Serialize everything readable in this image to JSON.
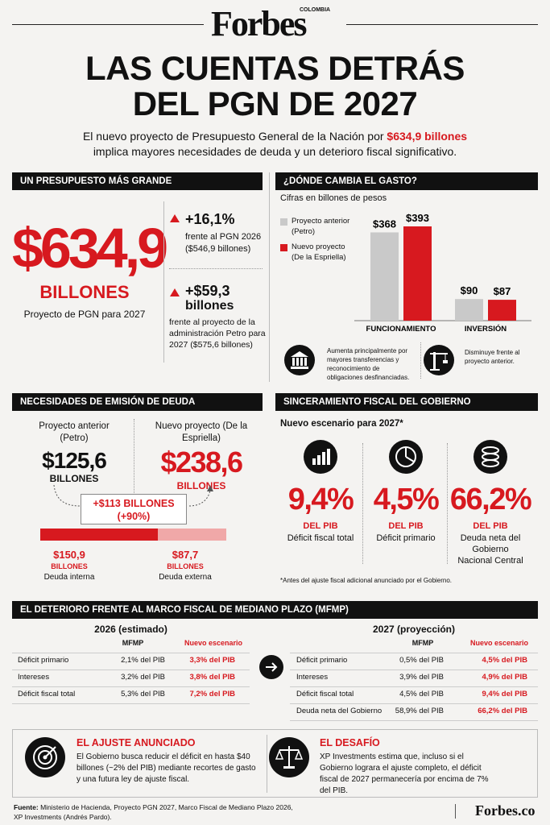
{
  "header": {
    "brand": "Forbes",
    "edition": "COLOMBIA",
    "title_line1": "LAS CUENTAS DETRÁS",
    "title_line2": "DEL PGN DE 2027",
    "intro_before": "El nuevo proyecto de Presupuesto General de la Nación por ",
    "intro_highlight": "$634,9 billones",
    "intro_after": "implica mayores necesidades de deuda y un deterioro fiscal significativo."
  },
  "budget": {
    "heading": "UN PRESUPUESTO MÁS GRANDE",
    "amount": "$634,9",
    "unit": "BILLONES",
    "caption": "Proyecto de PGN para 2027",
    "changes": [
      {
        "value": "+16,1%",
        "detail": "frente al PGN 2026 ($546,9 billones)"
      },
      {
        "value": "+$59,3",
        "unit": "billones",
        "detail": "frente al proyecto de la administración Petro para 2027 ($575,6 billones)"
      }
    ]
  },
  "spending": {
    "heading": "¿DÓNDE CAMBIA EL GASTO?",
    "subtitle": "Cifras en billones de pesos",
    "chart": {
      "type": "bar",
      "categories": [
        "FUNCIONAMIENTO",
        "INVERSIÓN"
      ],
      "series": [
        {
          "name": "Proyecto anterior (Petro)",
          "color": "#c9c9c9",
          "values": [
            368,
            90
          ],
          "value_labels": [
            "$368",
            "$90"
          ]
        },
        {
          "name": "Nuevo proyecto (De la Espriella)",
          "color": "#d7191f",
          "values": [
            393,
            87
          ],
          "value_labels": [
            "$393",
            "$87"
          ]
        }
      ]
    },
    "notes": [
      "Aumenta principalmente por mayores transferencias y reconocimiento de obligaciones desfinanciadas.",
      "Disminuye frente al proyecto anterior."
    ]
  },
  "debt": {
    "heading": "NECESIDADES DE EMISIÓN DE DEUDA",
    "previous": {
      "label": "Proyecto anterior (Petro)",
      "amount": "$125,6",
      "unit": "BILLONES"
    },
    "new": {
      "label": "Nuevo proyecto (De la Espriella)",
      "amount": "$238,6",
      "unit": "BILLONES"
    },
    "difference": "+$113 BILLONES",
    "difference_pct": "(+90%)",
    "segments": [
      {
        "value": 150.9,
        "value_label": "$150,9",
        "unit": "BILLONES",
        "name": "Deuda interna",
        "color": "#d7191f"
      },
      {
        "value": 87.7,
        "value_label": "$87,7",
        "unit": "BILLONES",
        "name": "Deuda externa",
        "color": "#f0a8a8"
      }
    ]
  },
  "fiscal": {
    "heading": "SINCERAMIENTO FISCAL DEL GOBIERNO",
    "subtitle": "Nuevo escenario para 2027*",
    "items": [
      {
        "value": "9,4%",
        "unit": "DEL PIB",
        "label": "Déficit fiscal total"
      },
      {
        "value": "4,5%",
        "unit": "DEL PIB",
        "label": "Déficit primario"
      },
      {
        "value": "66,2%",
        "unit": "DEL PIB",
        "label": "Deuda neta del Gobierno Nacional Central"
      }
    ],
    "footnote": "*Antes del ajuste fiscal adicional anunciado por el Gobierno."
  },
  "mfmp": {
    "heading": "EL DETERIORO FRENTE AL MARCO FISCAL DE MEDIANO PLAZO (MFMP)",
    "tables": [
      {
        "title": "2026 (estimado)",
        "columns": [
          "MFMP",
          "Nuevo escenario"
        ],
        "rows": [
          [
            "Déficit primario",
            "2,1% del PIB",
            "3,3% del PIB"
          ],
          [
            "Intereses",
            "3,2% del PIB",
            "3,8% del PIB"
          ],
          [
            "Déficit fiscal total",
            "5,3% del PIB",
            "7,2% del PIB"
          ]
        ]
      },
      {
        "title": "2027 (proyección)",
        "columns": [
          "MFMP",
          "Nuevo escenario"
        ],
        "rows": [
          [
            "Déficit primario",
            "0,5% del PIB",
            "4,5% del PIB"
          ],
          [
            "Intereses",
            "3,9% del PIB",
            "4,9% del PIB"
          ],
          [
            "Déficit fiscal total",
            "4,5% del PIB",
            "9,4% del PIB"
          ],
          [
            "Deuda neta del Gobierno",
            "58,9% del PIB",
            "66,2% del PIB"
          ]
        ]
      }
    ]
  },
  "boxes": [
    {
      "heading": "EL AJUSTE ANUNCIADO",
      "text": "El Gobierno busca reducir el déficit en hasta $40 billones (~2% del PIB) mediante recortes de gasto y una futura ley de ajuste fiscal."
    },
    {
      "heading": "EL DESAFÍO",
      "text": "XP Investments estima que, incluso si el Gobierno lograra el ajuste completo, el déficit fiscal de 2027 permanecería por encima de 7% del PIB."
    }
  ],
  "footer": {
    "source_label": "Fuente:",
    "source": "Ministerio de Hacienda, Proyecto PGN 2027, Marco Fiscal de Mediano Plazo 2026, XP Investments (Andrés Pardo).",
    "logo": "Forbes.co"
  }
}
